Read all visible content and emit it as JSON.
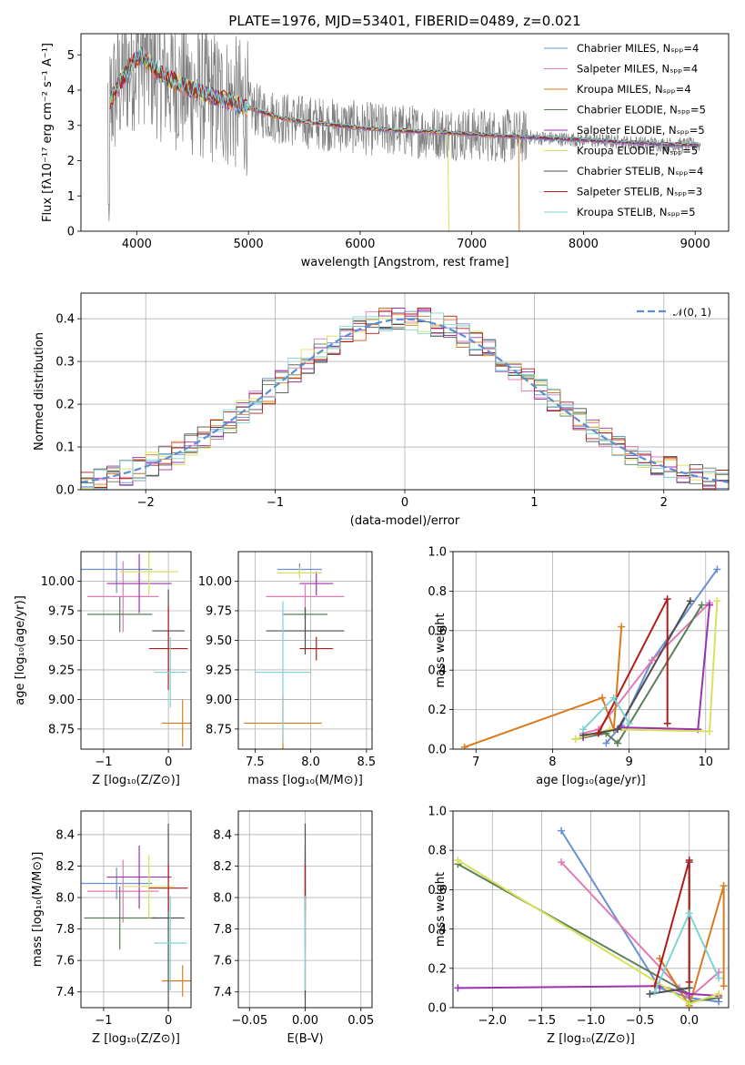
{
  "chart_data": [
    {
      "id": "spectrum",
      "type": "line",
      "title": "PLATE=1976, MJD=53401, FIBERID=0489, z=0.021",
      "xlabel": "wavelength [Angstrom, rest frame]",
      "ylabel": "Flux [fλ10⁻¹⁷ erg cm⁻² s⁻¹ A⁻¹]",
      "xlim": [
        3500,
        9300
      ],
      "ylim": [
        0,
        5.6
      ],
      "xticks": [
        4000,
        5000,
        6000,
        7000,
        8000,
        9000
      ],
      "yticks": [
        0,
        1,
        2,
        3,
        4,
        5
      ],
      "grid": false,
      "legend_position": "top-right",
      "legend": [
        "Chabrier MILES, Nₛₚₚ=4",
        "Salpeter MILES, Nₛₚₚ=4",
        "Kroupa MILES, Nₛₚₚ=4",
        "Chabrier ELODIE, Nₛₚₚ=5",
        "Salpeter ELODIE, Nₛₚₚ=5",
        "Kroupa ELODIE, Nₛₚₚ=5",
        "Chabrier STELIB, Nₛₚₚ=4",
        "Salpeter STELIB, Nₛₚₚ=3",
        "Kroupa STELIB, Nₛₚₚ=5"
      ],
      "model_shape": {
        "x": [
          3750,
          3850,
          3950,
          4050,
          4150,
          4300,
          4500,
          4700,
          4900,
          5100,
          5300,
          5500,
          5800,
          6100,
          6400,
          6700,
          7000,
          7300,
          7600,
          7900,
          8200,
          8500,
          8800,
          9000
        ],
        "y": [
          3.6,
          4.2,
          4.7,
          5.0,
          4.6,
          4.3,
          4.0,
          3.8,
          3.6,
          3.4,
          3.2,
          3.1,
          3.0,
          2.9,
          2.85,
          2.8,
          2.75,
          2.7,
          2.65,
          2.6,
          2.55,
          2.5,
          2.45,
          2.45
        ]
      },
      "data_noise_amplitude": 1.4
    },
    {
      "id": "residuals",
      "type": "line",
      "xlabel": "(data-model)/error",
      "ylabel": "Normed distribution",
      "xlim": [
        -2.5,
        2.5
      ],
      "ylim": [
        0,
        0.46
      ],
      "xticks": [
        -2,
        -1,
        0,
        1,
        2
      ],
      "yticks": [
        0.0,
        0.1,
        0.2,
        0.3,
        0.4
      ],
      "grid": true,
      "legend_position": "top-right",
      "legend": [
        "𝒩(0, 1)"
      ],
      "bin_width": 0.1
    },
    {
      "id": "age-vs-Z",
      "type": "scatter",
      "xlabel": "Z [log₁₀(Z/Z⊙)]",
      "ylabel": "age  [log₁₀(age/yr)]",
      "xlim": [
        -1.35,
        0.35
      ],
      "ylim": [
        8.58,
        10.25
      ],
      "xticks": [
        -1,
        0
      ],
      "yticks": [
        8.75,
        9.0,
        9.25,
        9.5,
        9.75,
        10.0
      ],
      "grid": true,
      "points": [
        {
          "x": -0.8,
          "y": 10.1,
          "xerr": 0.55,
          "yerr": 0.2
        },
        {
          "x": -0.7,
          "y": 9.87,
          "xerr": 0.55,
          "yerr": 0.3
        },
        {
          "x": 0.22,
          "y": 8.8,
          "xerr": 0.32,
          "yerr": 0.2
        },
        {
          "x": -0.75,
          "y": 9.72,
          "xerr": 0.5,
          "yerr": 0.15
        },
        {
          "x": -0.45,
          "y": 9.98,
          "xerr": 0.5,
          "yerr": 0.25
        },
        {
          "x": -0.3,
          "y": 10.08,
          "xerr": 0.45,
          "yerr": 0.2
        },
        {
          "x": 0.0,
          "y": 9.58,
          "xerr": 0.25,
          "yerr": 0.35
        },
        {
          "x": 0.0,
          "y": 9.43,
          "xerr": 0.3,
          "yerr": 0.35
        },
        {
          "x": 0.03,
          "y": 9.23,
          "xerr": 0.25,
          "yerr": 0.3
        }
      ]
    },
    {
      "id": "age-vs-mass",
      "type": "scatter",
      "xlabel": "mass [log₁₀(M/M⊙)]",
      "ylabel": "",
      "xlim": [
        7.35,
        8.55
      ],
      "ylim": [
        8.58,
        10.25
      ],
      "xticks": [
        7.5,
        8.0,
        8.5
      ],
      "yticks": [
        8.75,
        9.0,
        9.25,
        9.5,
        9.75,
        10.0
      ],
      "grid": true,
      "points": [
        {
          "x": 7.9,
          "y": 10.1,
          "xerr": 0.2,
          "yerr": 0.05
        },
        {
          "x": 7.95,
          "y": 9.87,
          "xerr": 0.35,
          "yerr": 0.1
        },
        {
          "x": 7.75,
          "y": 8.8,
          "xerr": 0.35,
          "yerr": 0.25
        },
        {
          "x": 7.95,
          "y": 9.72,
          "xerr": 0.2,
          "yerr": 0.05
        },
        {
          "x": 8.05,
          "y": 9.98,
          "xerr": 0.15,
          "yerr": 0.1
        },
        {
          "x": 7.9,
          "y": 10.07,
          "xerr": 0.2,
          "yerr": 0.05
        },
        {
          "x": 7.95,
          "y": 9.58,
          "xerr": 0.35,
          "yerr": 0.2
        },
        {
          "x": 8.05,
          "y": 9.43,
          "xerr": 0.15,
          "yerr": 0.1
        },
        {
          "x": 7.75,
          "y": 9.23,
          "xerr": 0.25,
          "yerr": 0.6
        }
      ]
    },
    {
      "id": "mass-weight-vs-age",
      "type": "line",
      "xlabel": "age  [log₁₀(age/yr)]",
      "ylabel": "mass weight",
      "xlim": [
        6.7,
        10.3
      ],
      "ylim": [
        0,
        1.0
      ],
      "xticks": [
        7,
        8,
        9,
        10
      ],
      "yticks": [
        0.0,
        0.2,
        0.4,
        0.6,
        0.8,
        1.0
      ],
      "grid": true,
      "series": [
        {
          "x": [
            8.7,
            8.9,
            9.3,
            10.15
          ],
          "y": [
            0.03,
            0.12,
            0.45,
            0.91
          ]
        },
        {
          "x": [
            8.4,
            8.6,
            9.3,
            10.05
          ],
          "y": [
            0.08,
            0.1,
            0.45,
            0.74
          ]
        },
        {
          "x": [
            6.85,
            8.65,
            8.8,
            8.9
          ],
          "y": [
            0.01,
            0.26,
            0.1,
            0.62
          ]
        },
        {
          "x": [
            8.3,
            8.7,
            8.85,
            9.95
          ],
          "y": [
            0.05,
            0.08,
            0.03,
            0.73
          ]
        },
        {
          "x": [
            8.4,
            8.9,
            9.9,
            10.05
          ],
          "y": [
            0.06,
            0.11,
            0.1,
            0.73
          ]
        },
        {
          "x": [
            8.3,
            8.75,
            10.05,
            10.15
          ],
          "y": [
            0.05,
            0.1,
            0.09,
            0.75
          ]
        },
        {
          "x": [
            8.4,
            8.85,
            9.8
          ],
          "y": [
            0.07,
            0.1,
            0.75
          ]
        },
        {
          "x": [
            8.6,
            9.5,
            9.5
          ],
          "y": [
            0.08,
            0.76,
            0.13
          ]
        },
        {
          "x": [
            8.4,
            8.8,
            9.0
          ],
          "y": [
            0.1,
            0.26,
            0.13
          ]
        }
      ]
    },
    {
      "id": "mass-vs-Z",
      "type": "scatter",
      "xlabel": "Z [log₁₀(Z/Z⊙)]",
      "ylabel": "mass [log₁₀(M/M⊙)]",
      "xlim": [
        -1.35,
        0.35
      ],
      "ylim": [
        7.3,
        8.55
      ],
      "xticks": [
        -1,
        0
      ],
      "yticks": [
        7.4,
        7.6,
        7.8,
        8.0,
        8.2,
        8.4
      ],
      "grid": true,
      "points": [
        {
          "x": -0.8,
          "y": 8.09,
          "xerr": 0.55,
          "yerr": 0.1
        },
        {
          "x": -0.7,
          "y": 8.04,
          "xerr": 0.55,
          "yerr": 0.2
        },
        {
          "x": 0.22,
          "y": 7.47,
          "xerr": 0.32,
          "yerr": 0.1
        },
        {
          "x": -0.75,
          "y": 7.87,
          "xerr": 0.55,
          "yerr": 0.2
        },
        {
          "x": -0.45,
          "y": 8.13,
          "xerr": 0.5,
          "yerr": 0.2
        },
        {
          "x": -0.3,
          "y": 8.07,
          "xerr": 0.4,
          "yerr": 0.2
        },
        {
          "x": 0.0,
          "y": 7.87,
          "xerr": 0.25,
          "yerr": 0.6
        },
        {
          "x": 0.0,
          "y": 8.06,
          "xerr": 0.3,
          "yerr": 0.15
        },
        {
          "x": 0.03,
          "y": 7.71,
          "xerr": 0.25,
          "yerr": 0.3
        }
      ]
    },
    {
      "id": "mass-vs-EBV",
      "type": "scatter",
      "xlabel": "E(B-V)",
      "ylabel": "",
      "xlim": [
        -0.06,
        0.06
      ],
      "ylim": [
        7.3,
        8.55
      ],
      "xticks": [
        -0.05,
        0.0,
        0.05
      ],
      "yticks": [
        7.4,
        7.6,
        7.8,
        8.0,
        8.2,
        8.4
      ],
      "grid": true,
      "points": [
        {
          "x": 0.0,
          "y": 8.09,
          "xerr": 0,
          "yerr": 0.1
        },
        {
          "x": 0.0,
          "y": 8.04,
          "xerr": 0,
          "yerr": 0.2
        },
        {
          "x": 0.0,
          "y": 7.47,
          "xerr": 0,
          "yerr": 0.1
        },
        {
          "x": 0.0,
          "y": 7.87,
          "xerr": 0,
          "yerr": 0.2
        },
        {
          "x": 0.0,
          "y": 8.13,
          "xerr": 0,
          "yerr": 0.2
        },
        {
          "x": 0.0,
          "y": 8.07,
          "xerr": 0,
          "yerr": 0.2
        },
        {
          "x": 0.0,
          "y": 7.87,
          "xerr": 0,
          "yerr": 0.6
        },
        {
          "x": 0.0,
          "y": 8.06,
          "xerr": 0,
          "yerr": 0.15
        },
        {
          "x": 0.0,
          "y": 7.71,
          "xerr": 0,
          "yerr": 0.3
        }
      ]
    },
    {
      "id": "mass-weight-vs-Z",
      "type": "line",
      "xlabel": "Z [log₁₀(Z/Z⊙)]",
      "ylabel": "mass weight",
      "xlim": [
        -2.4,
        0.4
      ],
      "ylim": [
        0,
        1.0
      ],
      "xticks": [
        -2.0,
        -1.5,
        -1.0,
        -0.5,
        0.0
      ],
      "yticks": [
        0.0,
        0.2,
        0.4,
        0.6,
        0.8,
        1.0
      ],
      "grid": true,
      "series": [
        {
          "x": [
            -1.3,
            -0.3,
            0.0,
            0.3
          ],
          "y": [
            0.9,
            0.1,
            0.05,
            0.03
          ]
        },
        {
          "x": [
            -1.3,
            -0.1,
            0.0,
            0.3
          ],
          "y": [
            0.74,
            0.1,
            0.05,
            0.18
          ]
        },
        {
          "x": [
            -0.3,
            0.0,
            0.35,
            0.35
          ],
          "y": [
            0.25,
            0.01,
            0.62,
            0.11
          ]
        },
        {
          "x": [
            -2.35,
            0.0,
            0.0,
            0.3
          ],
          "y": [
            0.73,
            0.07,
            0.03,
            0.05
          ]
        },
        {
          "x": [
            -2.35,
            -0.3,
            0.0,
            0.3
          ],
          "y": [
            0.1,
            0.11,
            0.07,
            0.06
          ]
        },
        {
          "x": [
            -2.35,
            -0.2,
            0.0,
            0.3
          ],
          "y": [
            0.75,
            0.09,
            0.02,
            0.07
          ]
        },
        {
          "x": [
            -0.4,
            0.0,
            0.0
          ],
          "y": [
            0.07,
            0.1,
            0.74
          ]
        },
        {
          "x": [
            -0.35,
            0.0,
            0.0
          ],
          "y": [
            0.11,
            0.75,
            0.13
          ]
        },
        {
          "x": [
            -0.35,
            0.0,
            0.3
          ],
          "y": [
            0.08,
            0.48,
            0.15
          ]
        }
      ]
    }
  ],
  "colors": [
    "#6b8fd6",
    "#e07bb5",
    "#d97a1e",
    "#5a7f59",
    "#9b32b0",
    "#d9e05a",
    "#4d4d4d",
    "#b01c1c",
    "#7fd3d4"
  ],
  "data_color": "#7f7f7f",
  "normal_color": "#5b8ed6"
}
